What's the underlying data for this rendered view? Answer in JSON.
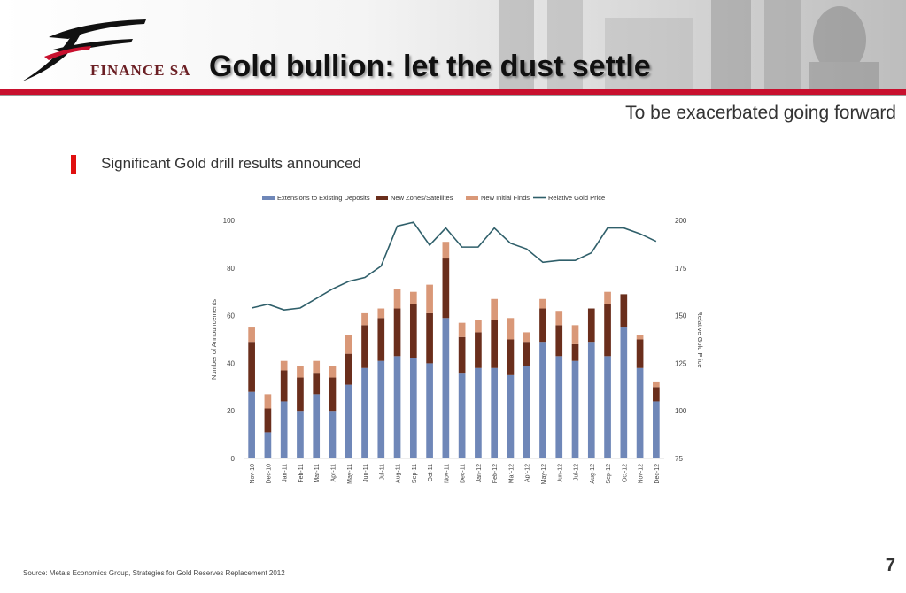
{
  "slide": {
    "title": "Gold bullion: let the dust settle",
    "subtitle": "To be exacerbated going forward",
    "bullet": "Significant Gold drill results announced",
    "logo_text": "FINANCE SA",
    "source": "Source:  Metals Economics Group, Strategies for Gold Reserves Replacement 2012",
    "page_number": "7",
    "colors": {
      "accent": "#c8102e",
      "bullet": "#e01010"
    }
  },
  "chart_data": {
    "type": "bar",
    "stacked": true,
    "title": "",
    "ylabel": "Number of Announcements",
    "y2label": "Relative Gold Price",
    "ylim": [
      0,
      100
    ],
    "y2lim": [
      75,
      200
    ],
    "yticks": [
      0,
      20,
      40,
      60,
      80,
      100
    ],
    "y2ticks": [
      75,
      100,
      125,
      150,
      175,
      200
    ],
    "grid": false,
    "legend_position": "top",
    "categories": [
      "Nov-10",
      "Dec-10",
      "Jan-11",
      "Feb-11",
      "Mar-11",
      "Apr-11",
      "May-11",
      "Jun-11",
      "Jul-11",
      "Aug-11",
      "Sep-11",
      "Oct-11",
      "Nov-11",
      "Dec-11",
      "Jan-12",
      "Feb-12",
      "Mar-12",
      "Apr-12",
      "May-12",
      "Jun-12",
      "Jul-12",
      "Aug-12",
      "Sep-12",
      "Oct-12",
      "Nov-12",
      "Dec-12"
    ],
    "series": [
      {
        "name": "Extensions to Existing Deposits",
        "color": "#6f87b8",
        "values": [
          28,
          11,
          24,
          20,
          27,
          20,
          31,
          38,
          41,
          43,
          42,
          40,
          59,
          36,
          38,
          38,
          35,
          39,
          49,
          43,
          41,
          49,
          43,
          55,
          38,
          24
        ]
      },
      {
        "name": "New Zones/Satellites",
        "color": "#6a2e1c",
        "values": [
          21,
          10,
          13,
          14,
          9,
          14,
          13,
          18,
          18,
          20,
          23,
          21,
          25,
          15,
          15,
          20,
          15,
          10,
          14,
          13,
          7,
          14,
          22,
          14,
          12,
          6
        ]
      },
      {
        "name": "New Initial Finds",
        "color": "#d99878",
        "values": [
          6,
          6,
          4,
          5,
          5,
          5,
          8,
          5,
          4,
          8,
          5,
          12,
          7,
          6,
          5,
          9,
          9,
          4,
          4,
          6,
          8,
          0,
          5,
          0,
          2,
          2
        ]
      }
    ],
    "line": {
      "name": "Relative Gold Price",
      "color": "#2f5f6a",
      "axis": "right",
      "values": [
        154,
        156,
        153,
        154,
        159,
        164,
        168,
        170,
        176,
        197,
        199,
        187,
        196,
        186,
        186,
        196,
        188,
        185,
        178,
        179,
        179,
        183,
        196,
        196,
        193,
        189
      ]
    }
  }
}
